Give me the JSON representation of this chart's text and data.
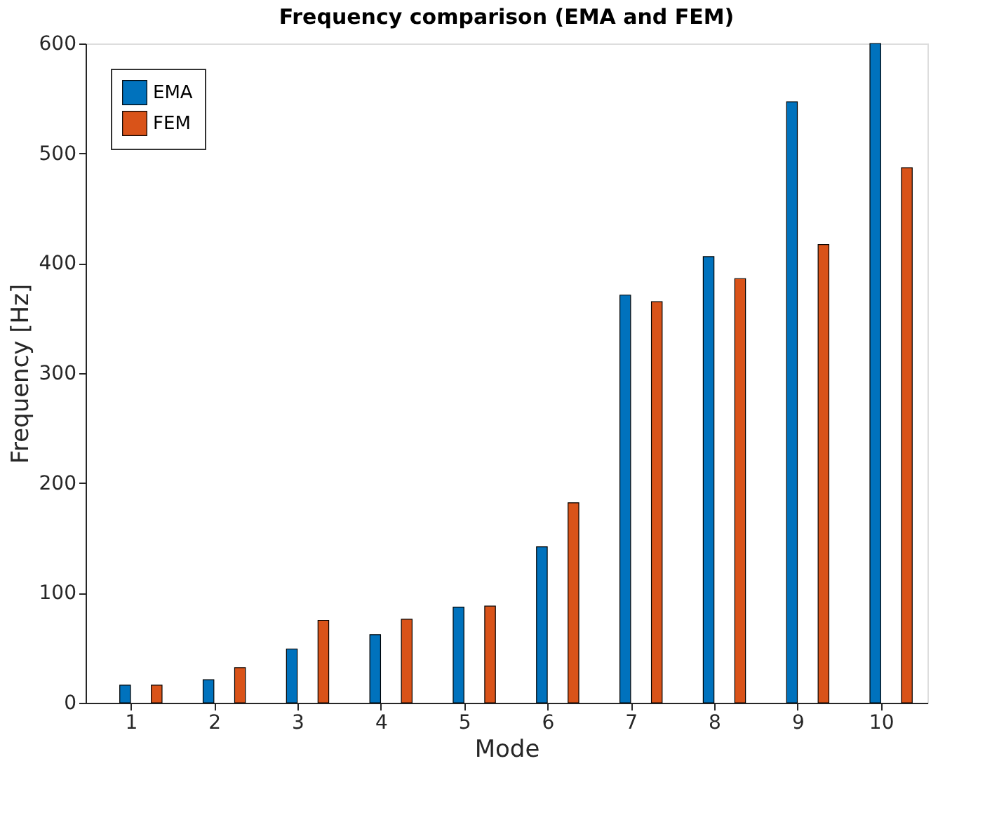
{
  "chart_data": {
    "type": "bar",
    "title": "Frequency comparison (EMA and FEM)",
    "xlabel": "Mode",
    "ylabel": "Frequency [Hz]",
    "categories": [
      "1",
      "2",
      "3",
      "4",
      "5",
      "6",
      "7",
      "8",
      "9",
      "10"
    ],
    "series": [
      {
        "name": "EMA",
        "color": "#0072bd",
        "values": [
          16,
          21,
          49,
          62,
          87,
          142,
          371,
          406,
          547,
          600
        ]
      },
      {
        "name": "FEM",
        "color": "#d95319",
        "values": [
          16,
          32,
          75,
          76,
          88,
          182,
          365,
          386,
          417,
          487
        ]
      }
    ],
    "ylim": [
      0,
      600
    ],
    "yticks": [
      0,
      100,
      200,
      300,
      400,
      500,
      600
    ],
    "grid": false,
    "legend": "top left"
  }
}
